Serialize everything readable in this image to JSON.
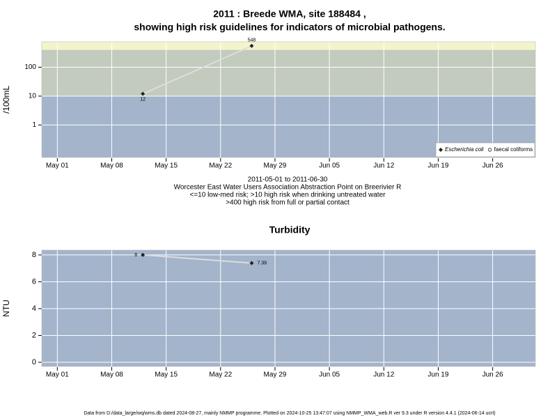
{
  "chart_data": [
    {
      "type": "line",
      "title": [
        "2011 : Breede WMA, site 188484 ,",
        "showing high risk guidelines for indicators of microbial pathogens."
      ],
      "ylabel": "/100mL",
      "notes": [
        "2011-05-01 to 2011-06-30",
        "Worcester East Water Users Association Abstraction Point on Breerivier R",
        "<=10 low-med risk; >10 high risk when drinking untreated water",
        ">400 high risk from full or partial contact"
      ],
      "x": [
        12,
        26
      ],
      "series": [
        {
          "name": "Escherichia coli",
          "color": "#222222",
          "marker": "diamond",
          "values": [
            12,
            548
          ],
          "value_labels": [
            "12",
            "548"
          ]
        },
        {
          "name": "faecal coliforms",
          "color": "#222222",
          "marker": "circle",
          "values": [
            null,
            null
          ]
        }
      ],
      "line_color": "#dddddd",
      "xlim": [
        -1,
        62.5
      ],
      "xticks": [
        {
          "value": 1,
          "label": "May 01"
        },
        {
          "value": 8,
          "label": "May 08"
        },
        {
          "value": 15,
          "label": "May 15"
        },
        {
          "value": 22,
          "label": "May 22"
        },
        {
          "value": 29,
          "label": "May 29"
        },
        {
          "value": 36,
          "label": "Jun 05"
        },
        {
          "value": 43,
          "label": "Jun 12"
        },
        {
          "value": 50,
          "label": "Jun 19"
        },
        {
          "value": 57,
          "label": "Jun 26"
        }
      ],
      "ylim": [
        0.075,
        760
      ],
      "yticks": [
        1,
        10,
        100
      ],
      "log_y": true,
      "grid": true,
      "legend": "bottom-right",
      "bands": [
        {
          "to": 10,
          "color": "#a3b4cb"
        },
        {
          "from": 10,
          "to": 400,
          "color": "#c3cbbf"
        },
        {
          "from": 400,
          "color": "#f4f4cc"
        }
      ]
    },
    {
      "type": "line",
      "title": [
        "Turbidity"
      ],
      "ylabel": "NTU",
      "x": [
        12,
        26
      ],
      "series": [
        {
          "name": "Turbidity",
          "color": "#222222",
          "marker": "diamond",
          "values": [
            8,
            7.39
          ],
          "value_labels": [
            "8",
            "7.39"
          ]
        }
      ],
      "line_color": "#dddddd",
      "xlim": [
        -1,
        62.5
      ],
      "xticks": [
        {
          "value": 1,
          "label": "May 01"
        },
        {
          "value": 8,
          "label": "May 08"
        },
        {
          "value": 15,
          "label": "May 15"
        },
        {
          "value": 22,
          "label": "May 22"
        },
        {
          "value": 29,
          "label": "May 29"
        },
        {
          "value": 36,
          "label": "Jun 05"
        },
        {
          "value": 43,
          "label": "Jun 12"
        },
        {
          "value": 50,
          "label": "Jun 19"
        },
        {
          "value": 57,
          "label": "Jun 26"
        }
      ],
      "ylim": [
        -0.31,
        8.36
      ],
      "yticks": [
        0,
        2,
        4,
        6,
        8
      ],
      "log_y": false,
      "grid": true,
      "background": "#a3b4cb"
    }
  ],
  "footer": "Data from D:/data_large/wq/wms.db dated 2024-08-27, mainly NMMP programme. Plotted on 2024-10-25 13:47:07 using NMMP_WMA_web.R ver 9.3 under R version 4.4.1 (2024-06-14 ucrt)"
}
